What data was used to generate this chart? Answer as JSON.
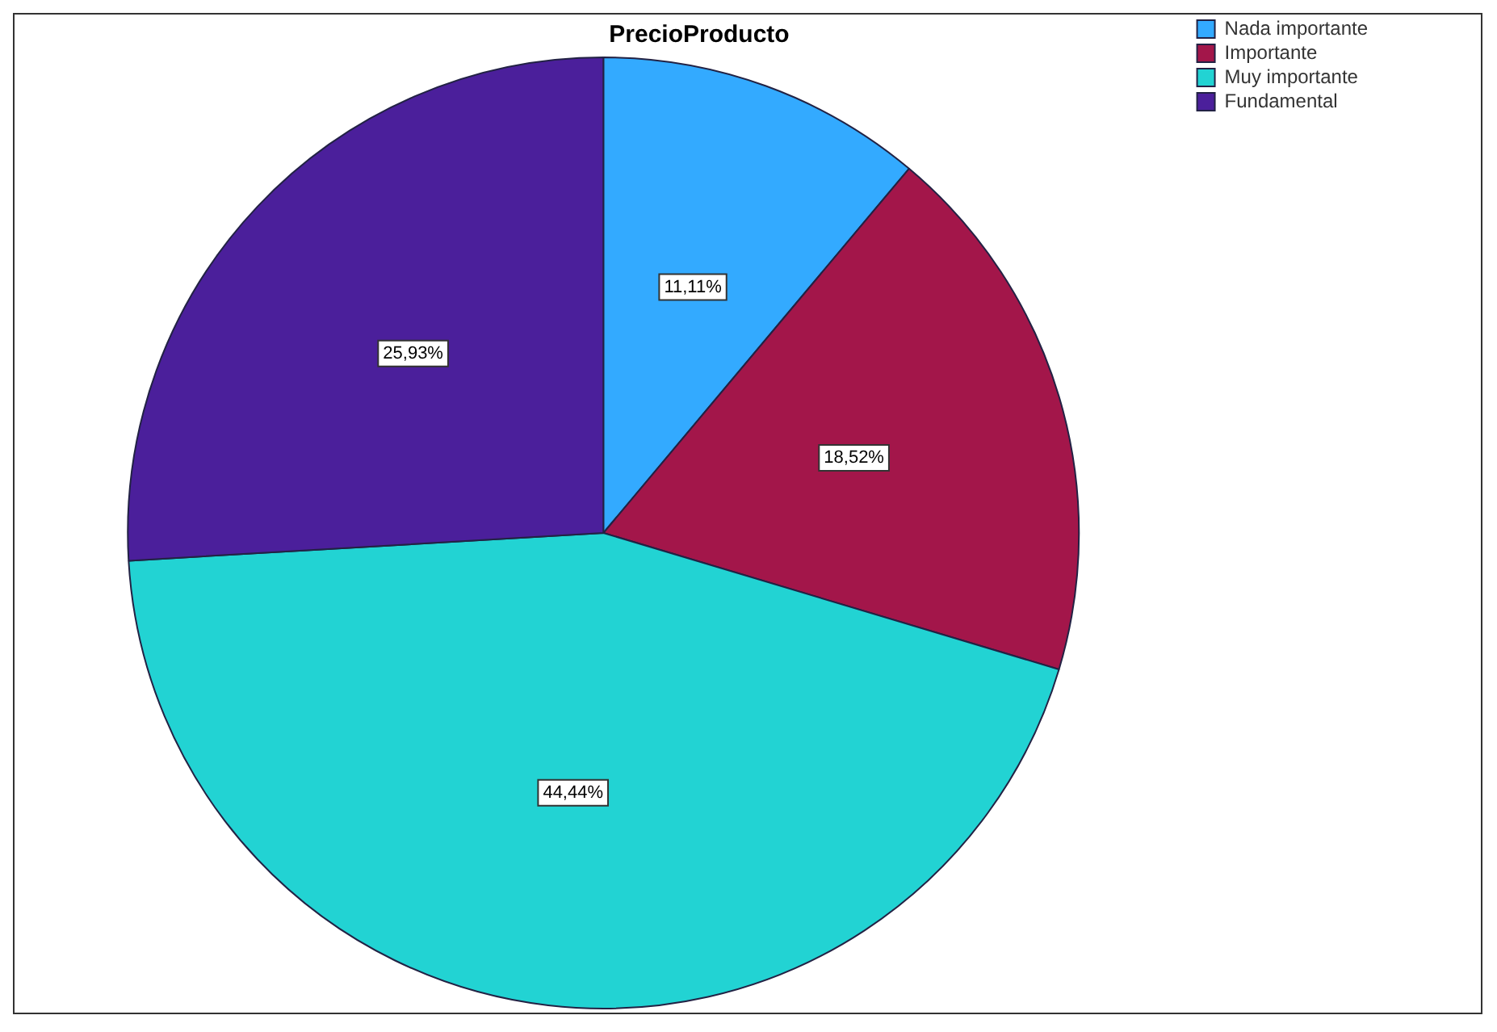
{
  "chart_data": {
    "type": "pie",
    "title": "PrecioProducto",
    "categories": [
      "Nada importante",
      "Importante",
      "Muy importante",
      "Fundamental"
    ],
    "values": [
      11.11,
      18.52,
      44.44,
      25.93
    ],
    "colors": [
      "#33aaff",
      "#a3164a",
      "#22d3d3",
      "#4b1f9b"
    ],
    "value_labels": [
      "11,11%",
      "18,52%",
      "44,44%",
      "25,93%"
    ],
    "legend": "top right"
  }
}
